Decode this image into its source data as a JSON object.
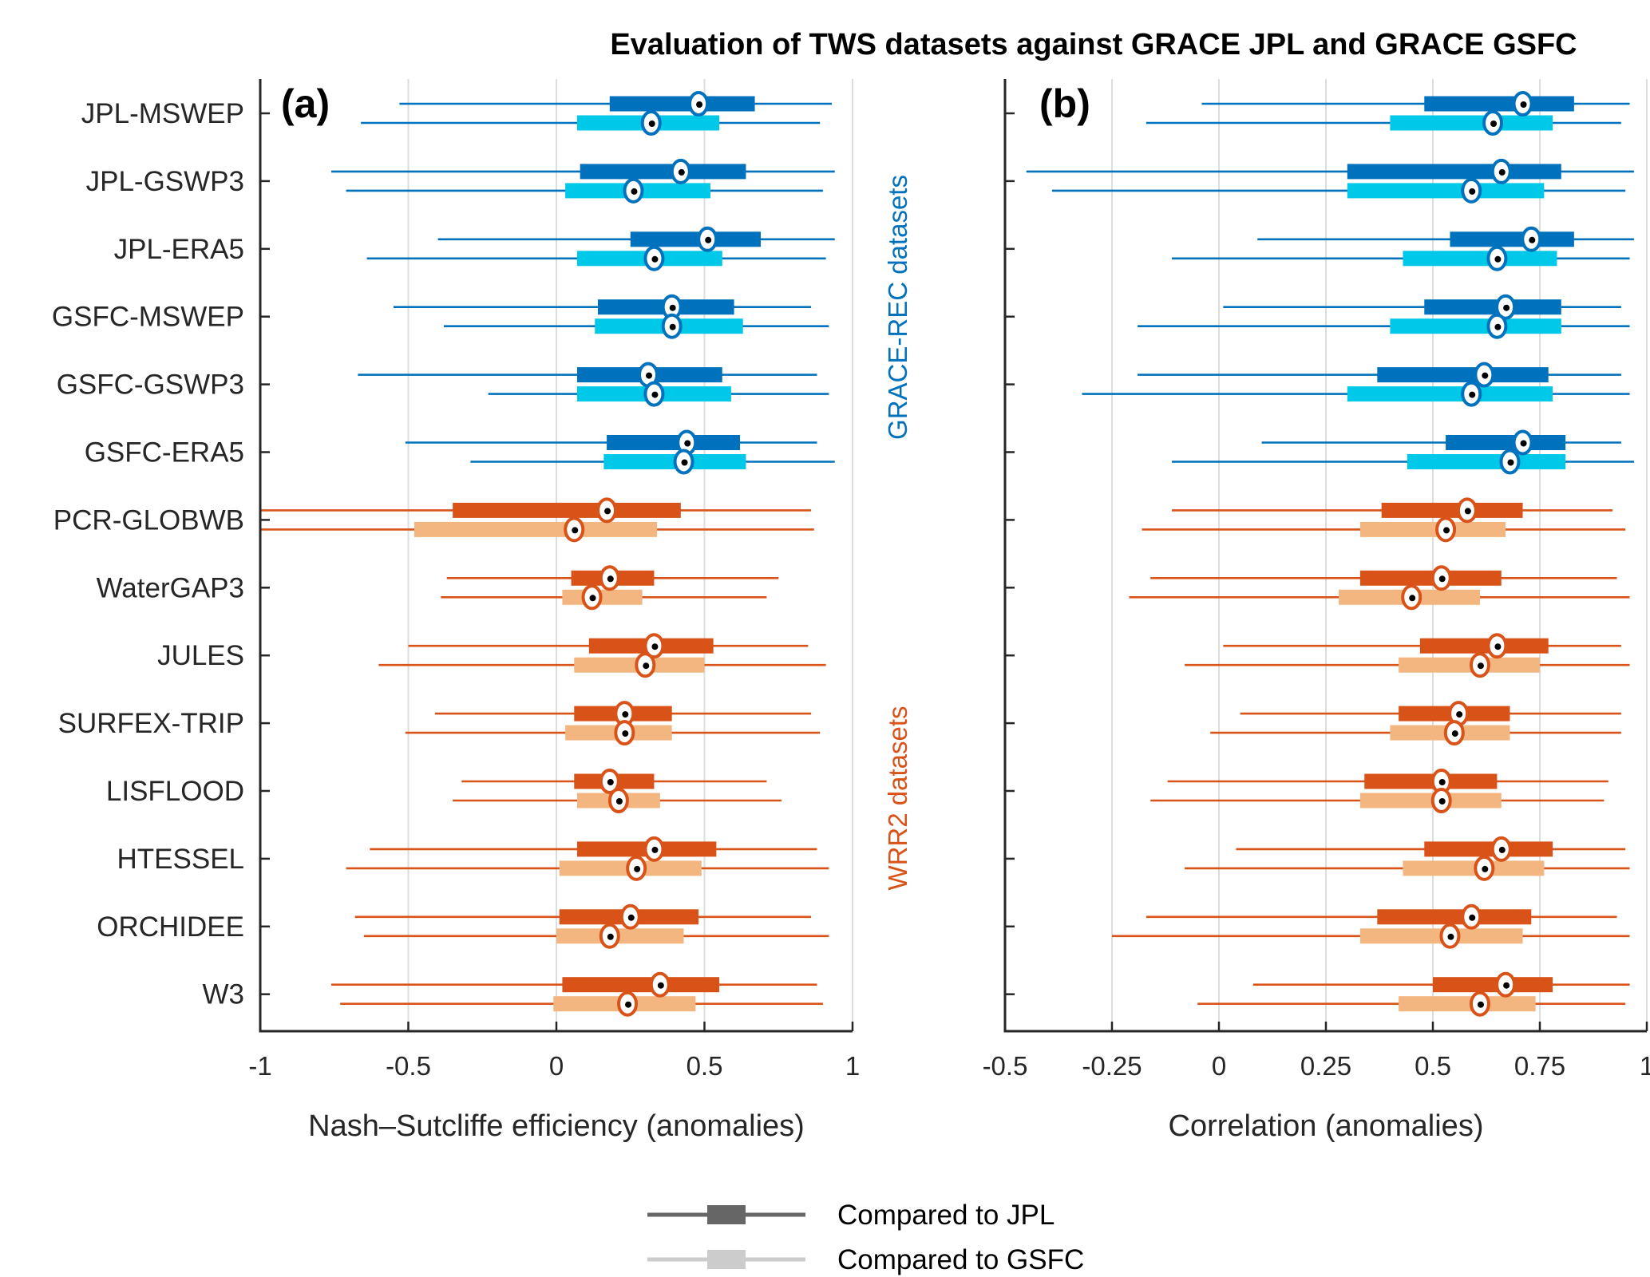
{
  "title": "Evaluation of TWS datasets against GRACE JPL and GRACE GSFC",
  "colors": {
    "grace_rec_jpl": "#0072BD",
    "grace_rec_gsfc": "#00C8E8",
    "wrr2_jpl": "#D95319",
    "wrr2_gsfc": "#F3B680",
    "grace_rec_label": "#0072BD",
    "wrr2_label": "#D95319",
    "legend_jpl": "#666666",
    "legend_gsfc": "#CCCCCC",
    "grid": "#DDDDDD",
    "axis": "#262626"
  },
  "group_labels": {
    "grace_rec": "GRACE-REC datasets",
    "wrr2": "WRR2 datasets"
  },
  "legend": {
    "jpl": "Compared to JPL",
    "gsfc": "Compared to GSFC"
  },
  "chart_data": [
    {
      "type": "box",
      "panel_label": "(a)",
      "xlabel": "Nash–Sutcliffe efficiency (anomalies)",
      "ylabel": "",
      "xlim": [
        -1,
        1
      ],
      "xticks": [
        -1,
        -0.5,
        0,
        0.5,
        1
      ],
      "xtick_labels": [
        "-1",
        "-0.5",
        "0",
        "0.5",
        "1"
      ],
      "grid": true,
      "categories": [
        "JPL-MSWEP",
        "JPL-GSWP3",
        "JPL-ERA5",
        "GSFC-MSWEP",
        "GSFC-GSWP3",
        "GSFC-ERA5",
        "PCR-GLOBWB",
        "WaterGAP3",
        "JULES",
        "SURFEX-TRIP",
        "LISFLOOD",
        "HTESSEL",
        "ORCHIDEE",
        "W3"
      ],
      "groups": [
        "grace_rec",
        "grace_rec",
        "grace_rec",
        "grace_rec",
        "grace_rec",
        "grace_rec",
        "wrr2",
        "wrr2",
        "wrr2",
        "wrr2",
        "wrr2",
        "wrr2",
        "wrr2",
        "wrr2"
      ],
      "series": [
        {
          "name": "Compared to JPL",
          "stats": [
            {
              "whisker_low": -0.53,
              "q1": 0.18,
              "median": 0.48,
              "q3": 0.67,
              "whisker_high": 0.93
            },
            {
              "whisker_low": -0.76,
              "q1": 0.08,
              "median": 0.42,
              "q3": 0.64,
              "whisker_high": 0.94
            },
            {
              "whisker_low": -0.4,
              "q1": 0.25,
              "median": 0.51,
              "q3": 0.69,
              "whisker_high": 0.94
            },
            {
              "whisker_low": -0.55,
              "q1": 0.14,
              "median": 0.39,
              "q3": 0.6,
              "whisker_high": 0.86
            },
            {
              "whisker_low": -0.67,
              "q1": 0.07,
              "median": 0.31,
              "q3": 0.56,
              "whisker_high": 0.88
            },
            {
              "whisker_low": -0.51,
              "q1": 0.17,
              "median": 0.44,
              "q3": 0.62,
              "whisker_high": 0.88
            },
            {
              "whisker_low": -1.0,
              "q1": -0.35,
              "median": 0.17,
              "q3": 0.42,
              "whisker_high": 0.86
            },
            {
              "whisker_low": -0.37,
              "q1": 0.05,
              "median": 0.18,
              "q3": 0.33,
              "whisker_high": 0.75
            },
            {
              "whisker_low": -0.5,
              "q1": 0.11,
              "median": 0.33,
              "q3": 0.53,
              "whisker_high": 0.85
            },
            {
              "whisker_low": -0.41,
              "q1": 0.06,
              "median": 0.23,
              "q3": 0.39,
              "whisker_high": 0.86
            },
            {
              "whisker_low": -0.32,
              "q1": 0.06,
              "median": 0.18,
              "q3": 0.33,
              "whisker_high": 0.71
            },
            {
              "whisker_low": -0.63,
              "q1": 0.07,
              "median": 0.33,
              "q3": 0.54,
              "whisker_high": 0.88
            },
            {
              "whisker_low": -0.68,
              "q1": 0.01,
              "median": 0.25,
              "q3": 0.48,
              "whisker_high": 0.86
            },
            {
              "whisker_low": -0.76,
              "q1": 0.02,
              "median": 0.35,
              "q3": 0.55,
              "whisker_high": 0.88
            }
          ]
        },
        {
          "name": "Compared to GSFC",
          "stats": [
            {
              "whisker_low": -0.66,
              "q1": 0.07,
              "median": 0.32,
              "q3": 0.55,
              "whisker_high": 0.89
            },
            {
              "whisker_low": -0.71,
              "q1": 0.03,
              "median": 0.26,
              "q3": 0.52,
              "whisker_high": 0.9
            },
            {
              "whisker_low": -0.64,
              "q1": 0.07,
              "median": 0.33,
              "q3": 0.56,
              "whisker_high": 0.91
            },
            {
              "whisker_low": -0.38,
              "q1": 0.13,
              "median": 0.39,
              "q3": 0.63,
              "whisker_high": 0.92
            },
            {
              "whisker_low": -0.23,
              "q1": 0.07,
              "median": 0.33,
              "q3": 0.59,
              "whisker_high": 0.92
            },
            {
              "whisker_low": -0.29,
              "q1": 0.16,
              "median": 0.43,
              "q3": 0.64,
              "whisker_high": 0.94
            },
            {
              "whisker_low": -1.0,
              "q1": -0.48,
              "median": 0.06,
              "q3": 0.34,
              "whisker_high": 0.87
            },
            {
              "whisker_low": -0.39,
              "q1": 0.02,
              "median": 0.12,
              "q3": 0.29,
              "whisker_high": 0.71
            },
            {
              "whisker_low": -0.6,
              "q1": 0.06,
              "median": 0.3,
              "q3": 0.5,
              "whisker_high": 0.91
            },
            {
              "whisker_low": -0.51,
              "q1": 0.03,
              "median": 0.23,
              "q3": 0.39,
              "whisker_high": 0.89
            },
            {
              "whisker_low": -0.35,
              "q1": 0.07,
              "median": 0.21,
              "q3": 0.35,
              "whisker_high": 0.76
            },
            {
              "whisker_low": -0.71,
              "q1": 0.01,
              "median": 0.27,
              "q3": 0.49,
              "whisker_high": 0.92
            },
            {
              "whisker_low": -0.65,
              "q1": 0.0,
              "median": 0.18,
              "q3": 0.43,
              "whisker_high": 0.92
            },
            {
              "whisker_low": -0.73,
              "q1": -0.01,
              "median": 0.24,
              "q3": 0.47,
              "whisker_high": 0.9
            }
          ]
        }
      ]
    },
    {
      "type": "box",
      "panel_label": "(b)",
      "xlabel": "Correlation (anomalies)",
      "ylabel": "",
      "xlim": [
        -0.5,
        1
      ],
      "xticks": [
        -0.5,
        -0.25,
        0,
        0.25,
        0.5,
        0.75,
        1
      ],
      "xtick_labels": [
        "-0.5",
        "-0.25",
        "0",
        "0.25",
        "0.5",
        "0.75",
        "1"
      ],
      "grid": true,
      "categories": [
        "JPL-MSWEP",
        "JPL-GSWP3",
        "JPL-ERA5",
        "GSFC-MSWEP",
        "GSFC-GSWP3",
        "GSFC-ERA5",
        "PCR-GLOBWB",
        "WaterGAP3",
        "JULES",
        "SURFEX-TRIP",
        "LISFLOOD",
        "HTESSEL",
        "ORCHIDEE",
        "W3"
      ],
      "groups": [
        "grace_rec",
        "grace_rec",
        "grace_rec",
        "grace_rec",
        "grace_rec",
        "grace_rec",
        "wrr2",
        "wrr2",
        "wrr2",
        "wrr2",
        "wrr2",
        "wrr2",
        "wrr2",
        "wrr2"
      ],
      "series": [
        {
          "name": "Compared to JPL",
          "stats": [
            {
              "whisker_low": -0.04,
              "q1": 0.48,
              "median": 0.71,
              "q3": 0.83,
              "whisker_high": 0.96
            },
            {
              "whisker_low": -0.45,
              "q1": 0.3,
              "median": 0.66,
              "q3": 0.8,
              "whisker_high": 0.97
            },
            {
              "whisker_low": 0.09,
              "q1": 0.54,
              "median": 0.73,
              "q3": 0.83,
              "whisker_high": 0.97
            },
            {
              "whisker_low": 0.01,
              "q1": 0.48,
              "median": 0.67,
              "q3": 0.8,
              "whisker_high": 0.94
            },
            {
              "whisker_low": -0.19,
              "q1": 0.37,
              "median": 0.62,
              "q3": 0.77,
              "whisker_high": 0.94
            },
            {
              "whisker_low": 0.1,
              "q1": 0.53,
              "median": 0.71,
              "q3": 0.81,
              "whisker_high": 0.94
            },
            {
              "whisker_low": -0.11,
              "q1": 0.38,
              "median": 0.58,
              "q3": 0.71,
              "whisker_high": 0.92
            },
            {
              "whisker_low": -0.16,
              "q1": 0.33,
              "median": 0.52,
              "q3": 0.66,
              "whisker_high": 0.93
            },
            {
              "whisker_low": 0.01,
              "q1": 0.47,
              "median": 0.65,
              "q3": 0.77,
              "whisker_high": 0.94
            },
            {
              "whisker_low": 0.05,
              "q1": 0.42,
              "median": 0.56,
              "q3": 0.68,
              "whisker_high": 0.94
            },
            {
              "whisker_low": -0.12,
              "q1": 0.34,
              "median": 0.52,
              "q3": 0.65,
              "whisker_high": 0.91
            },
            {
              "whisker_low": 0.04,
              "q1": 0.48,
              "median": 0.66,
              "q3": 0.78,
              "whisker_high": 0.95
            },
            {
              "whisker_low": -0.17,
              "q1": 0.37,
              "median": 0.59,
              "q3": 0.73,
              "whisker_high": 0.93
            },
            {
              "whisker_low": 0.08,
              "q1": 0.5,
              "median": 0.67,
              "q3": 0.78,
              "whisker_high": 0.96
            }
          ]
        },
        {
          "name": "Compared to GSFC",
          "stats": [
            {
              "whisker_low": -0.17,
              "q1": 0.4,
              "median": 0.64,
              "q3": 0.78,
              "whisker_high": 0.94
            },
            {
              "whisker_low": -0.39,
              "q1": 0.3,
              "median": 0.59,
              "q3": 0.76,
              "whisker_high": 0.95
            },
            {
              "whisker_low": -0.11,
              "q1": 0.43,
              "median": 0.65,
              "q3": 0.79,
              "whisker_high": 0.96
            },
            {
              "whisker_low": -0.19,
              "q1": 0.4,
              "median": 0.65,
              "q3": 0.8,
              "whisker_high": 0.96
            },
            {
              "whisker_low": -0.32,
              "q1": 0.3,
              "median": 0.59,
              "q3": 0.78,
              "whisker_high": 0.96
            },
            {
              "whisker_low": -0.11,
              "q1": 0.44,
              "median": 0.68,
              "q3": 0.81,
              "whisker_high": 0.97
            },
            {
              "whisker_low": -0.18,
              "q1": 0.33,
              "median": 0.53,
              "q3": 0.67,
              "whisker_high": 0.95
            },
            {
              "whisker_low": -0.21,
              "q1": 0.28,
              "median": 0.45,
              "q3": 0.61,
              "whisker_high": 0.96
            },
            {
              "whisker_low": -0.08,
              "q1": 0.42,
              "median": 0.61,
              "q3": 0.75,
              "whisker_high": 0.96
            },
            {
              "whisker_low": -0.02,
              "q1": 0.4,
              "median": 0.55,
              "q3": 0.68,
              "whisker_high": 0.94
            },
            {
              "whisker_low": -0.16,
              "q1": 0.33,
              "median": 0.52,
              "q3": 0.66,
              "whisker_high": 0.9
            },
            {
              "whisker_low": -0.08,
              "q1": 0.43,
              "median": 0.62,
              "q3": 0.76,
              "whisker_high": 0.96
            },
            {
              "whisker_low": -0.25,
              "q1": 0.33,
              "median": 0.54,
              "q3": 0.71,
              "whisker_high": 0.96
            },
            {
              "whisker_low": -0.05,
              "q1": 0.42,
              "median": 0.61,
              "q3": 0.74,
              "whisker_high": 0.95
            }
          ]
        }
      ]
    }
  ]
}
